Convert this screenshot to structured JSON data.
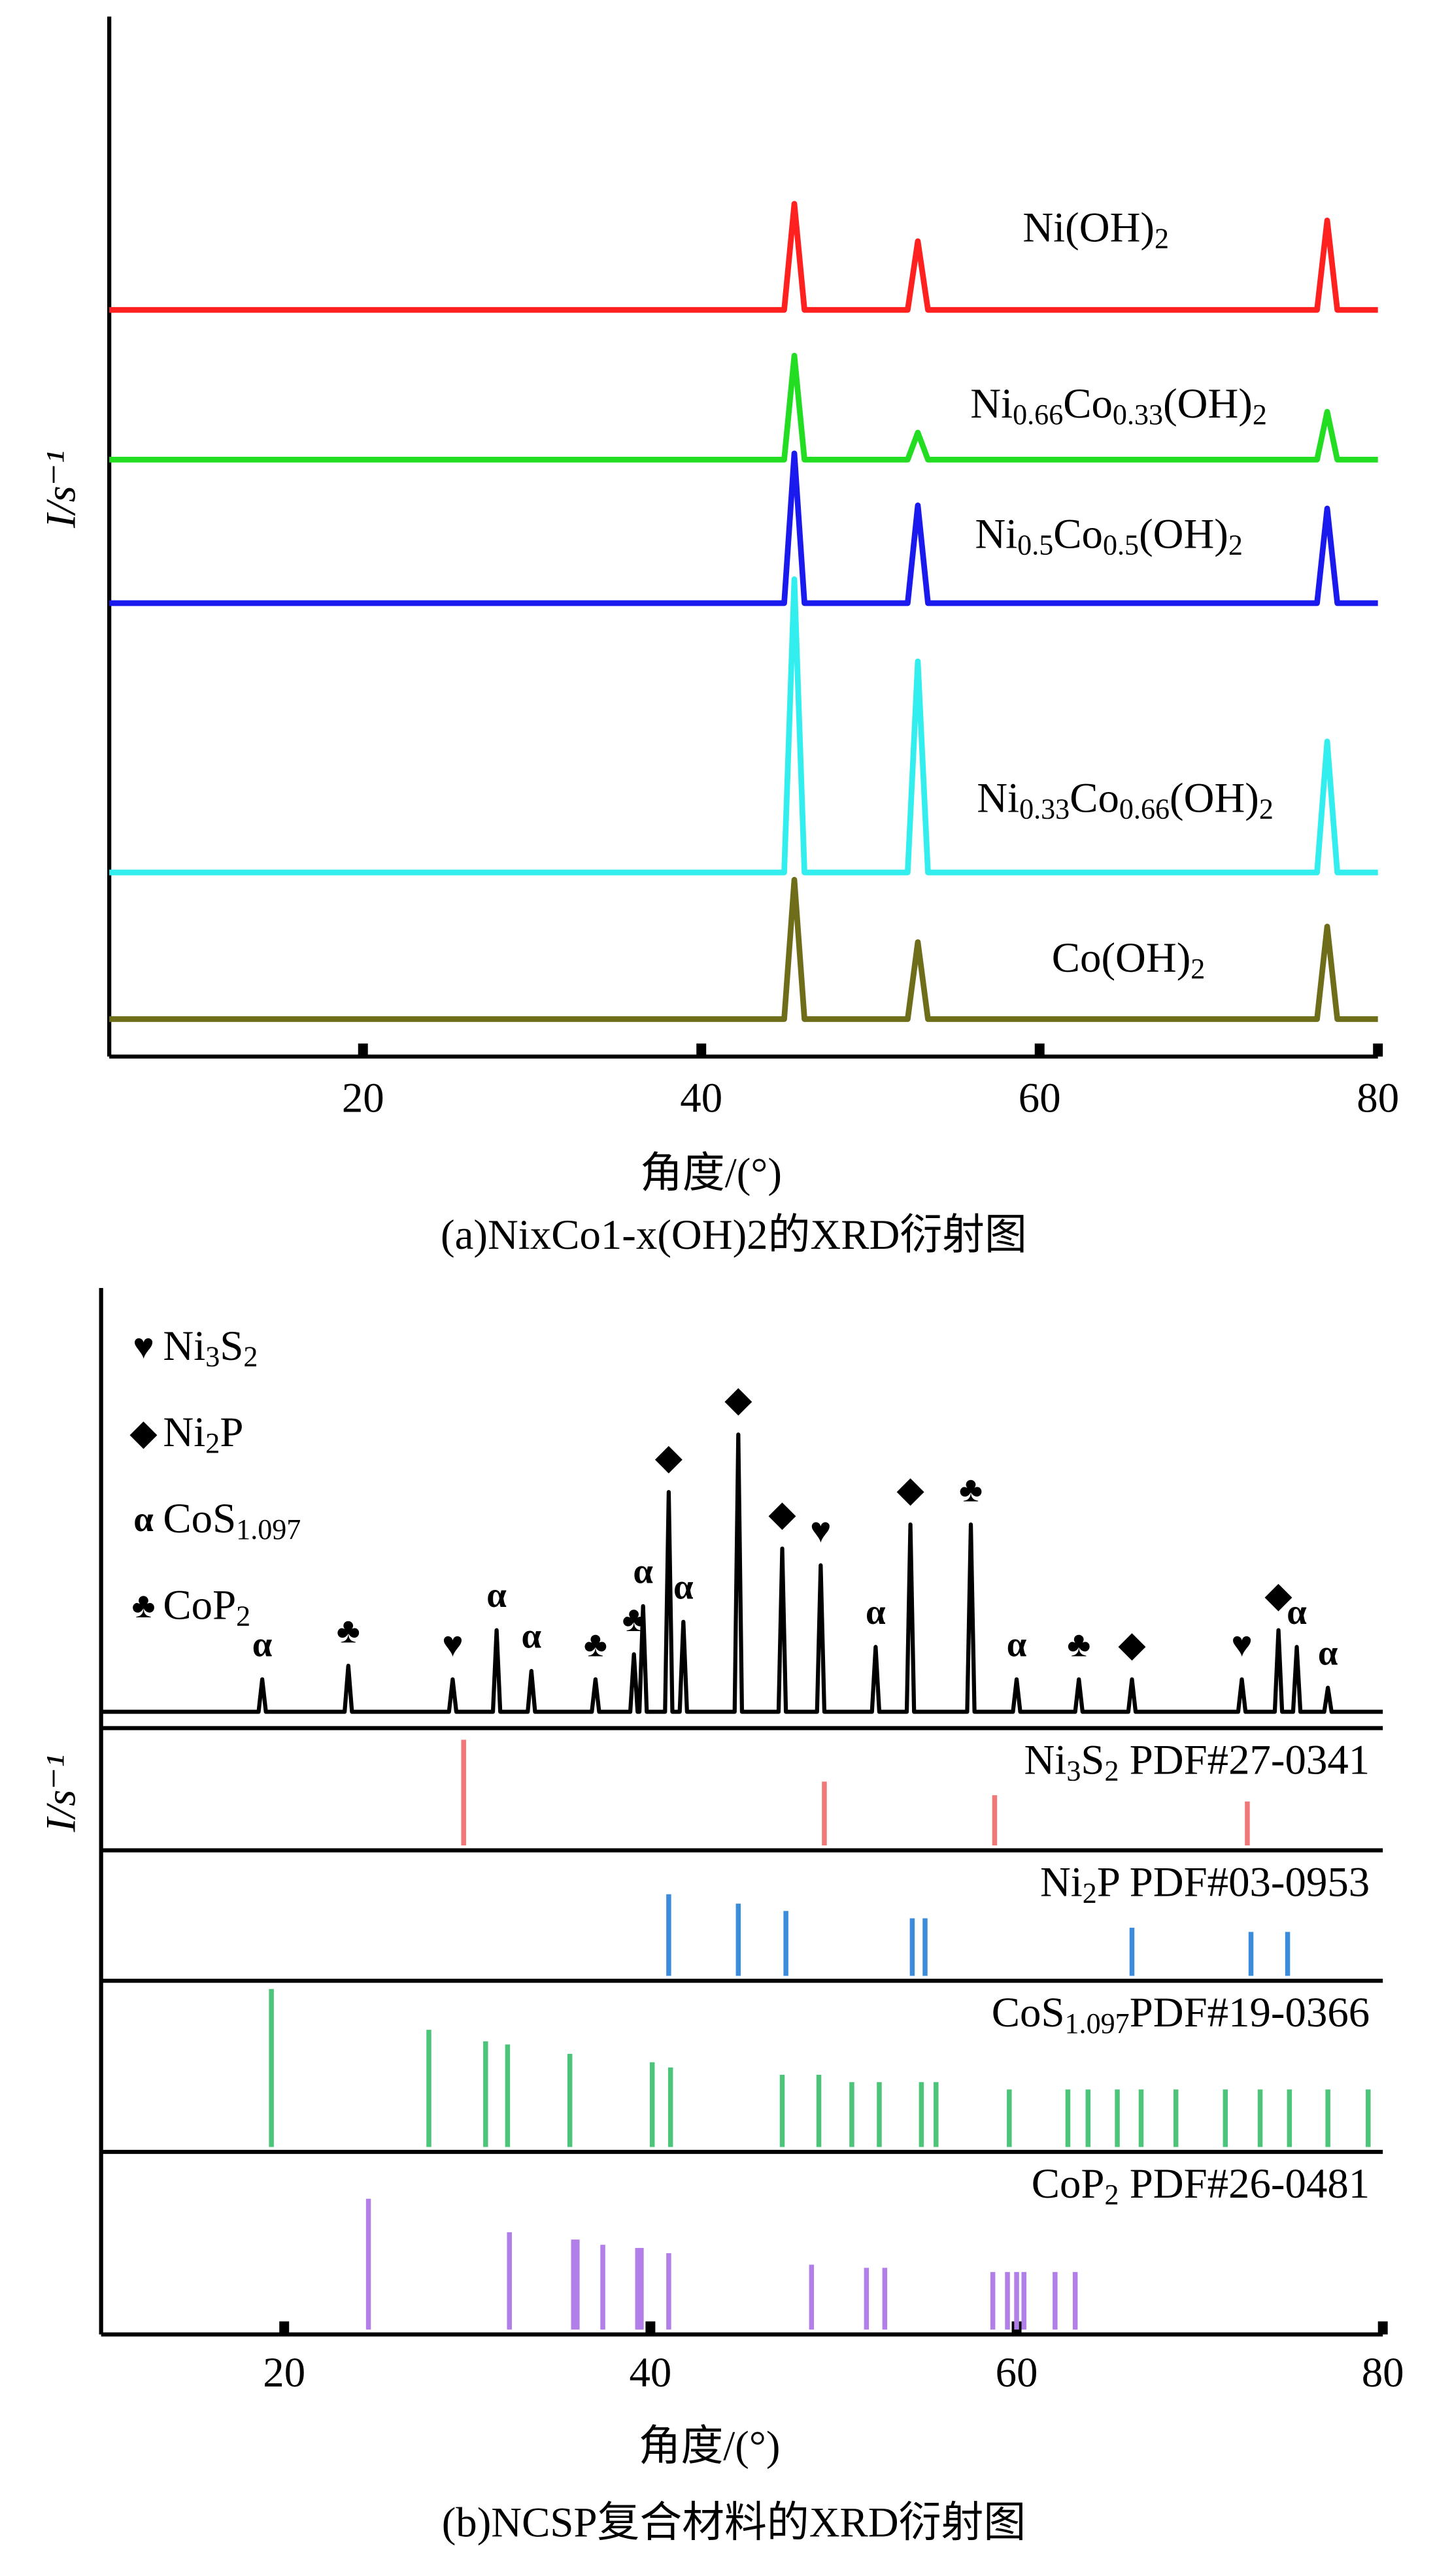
{
  "chart_data": [
    {
      "type": "line",
      "x_label": "角度/(°)",
      "y_label": "I/s⁻¹",
      "caption": "(a)NixCo1-x(OH)2的XRD衍射图",
      "xlim": [
        5,
        80
      ],
      "xticks": [
        20,
        40,
        60,
        80
      ],
      "ylim": [
        0,
        100
      ],
      "x": [
        5,
        44.9,
        45.5,
        46.1,
        52.2,
        52.8,
        53.4,
        76.4,
        77,
        77.6,
        80
      ],
      "series": [
        {
          "name": "Ni(OH)2",
          "color": "#ff2020",
          "values": [
            71.8,
            71.8,
            82,
            71.8,
            71.8,
            78.4,
            71.8,
            71.8,
            80.4,
            71.8,
            71.8
          ]
        },
        {
          "name": "Ni0.66Co0.33(OH)2",
          "color": "#22dd22",
          "values": [
            57.4,
            57.4,
            67.4,
            57.4,
            57.4,
            60,
            57.4,
            57.4,
            62,
            57.4,
            57.4
          ]
        },
        {
          "name": "Ni0.5Co0.5(OH)2",
          "color": "#1a1aee",
          "values": [
            43.6,
            43.6,
            58,
            43.6,
            43.6,
            53,
            43.6,
            43.6,
            52.7,
            43.6,
            43.6
          ]
        },
        {
          "name": "Ni0.33Co0.66(OH)2",
          "color": "#33eeee",
          "values": [
            17.7,
            17.7,
            45.9,
            17.7,
            17.7,
            38,
            17.7,
            17.7,
            30.3,
            17.7,
            17.7
          ]
        },
        {
          "name": "Co(OH)2",
          "color": "#6e6e1a",
          "values": [
            3.6,
            3.6,
            17,
            3.6,
            3.6,
            11,
            3.6,
            3.6,
            12.5,
            3.6,
            3.6
          ]
        }
      ]
    },
    {
      "type": "stick",
      "x_label": "角度/(°)",
      "y_label": "I/s⁻¹",
      "caption": "(b)NCSP复合材料的XRD衍射图",
      "xlim": [
        10,
        80
      ],
      "xticks": [
        20,
        40,
        60,
        80
      ],
      "ylim": [
        0,
        100
      ],
      "pattern": {
        "color": "#000000",
        "x": [
          10,
          18.6,
          18.8,
          19.0,
          23.3,
          23.5,
          23.7,
          29.0,
          29.2,
          29.4,
          31.4,
          31.6,
          31.8,
          33.3,
          33.5,
          33.7,
          36.8,
          37.0,
          37.2,
          38.9,
          39.1,
          39.3,
          39.4,
          39.6,
          39.8,
          40.8,
          41.0,
          41.2,
          41.6,
          41.8,
          42.0,
          44.6,
          44.8,
          45.0,
          47.0,
          47.2,
          47.4,
          49.1,
          49.3,
          49.5,
          52.1,
          52.3,
          52.5,
          54.0,
          54.2,
          54.4,
          57.3,
          57.5,
          57.7,
          59.8,
          60.0,
          60.2,
          63.2,
          63.4,
          63.6,
          66.1,
          66.3,
          66.5,
          72.1,
          72.3,
          72.5,
          74.1,
          74.3,
          74.5,
          75.1,
          75.3,
          75.5,
          76.8,
          77.0,
          77.2,
          80
        ],
        "values": [
          59.5,
          59.5,
          62.6,
          59.5,
          59.5,
          63.9,
          59.5,
          59.5,
          62.6,
          59.5,
          59.5,
          67.3,
          59.5,
          59.5,
          63.4,
          59.5,
          59.5,
          62.6,
          59.5,
          59.5,
          65.0,
          59.5,
          59.5,
          69.6,
          59.5,
          59.5,
          80.5,
          59.5,
          59.5,
          68.1,
          59.5,
          59.5,
          86.0,
          59.5,
          59.5,
          75.1,
          59.5,
          59.5,
          73.5,
          59.5,
          59.5,
          65.7,
          59.5,
          59.5,
          77.4,
          59.5,
          59.5,
          77.4,
          59.5,
          59.5,
          62.6,
          59.5,
          59.5,
          62.6,
          59.5,
          59.5,
          62.6,
          59.5,
          59.5,
          62.6,
          59.5,
          59.5,
          67.3,
          59.5,
          59.5,
          65.7,
          59.5,
          59.5,
          61.8,
          59.5,
          59.5
        ]
      },
      "markers": [
        {
          "name": "Ni3S2",
          "symbol": "♥",
          "x": [
            29.2,
            49.3,
            72.3
          ],
          "values": [
            65.6,
            76.5,
            65.6
          ]
        },
        {
          "name": "Ni2P",
          "symbol": "◆",
          "x": [
            41.0,
            44.8,
            47.2,
            54.2,
            66.3,
            74.3
          ],
          "values": [
            83.5,
            89,
            78.1,
            80.4,
            65.6,
            70.3
          ]
        },
        {
          "name": "CoS1.097",
          "symbol": "α",
          "x": [
            18.8,
            31.6,
            33.5,
            39.6,
            41.8,
            52.3,
            60.0,
            75.3,
            77.0
          ],
          "values": [
            65.6,
            70.3,
            66.4,
            72.6,
            71.1,
            68.7,
            65.6,
            68.7,
            64.8
          ]
        },
        {
          "name": "CoP2",
          "symbol": "♣",
          "x": [
            23.5,
            37.0,
            39.1,
            57.5,
            63.4
          ],
          "values": [
            66.9,
            65.6,
            68.0,
            80.4,
            65.6
          ]
        }
      ],
      "references": [
        {
          "name": "Ni3S2 PDF#27-0341",
          "color": "#f07878",
          "x": [
            29.8,
            49.5,
            58.8,
            72.6
          ],
          "values": [
            10.1,
            6.1,
            4.8,
            4.2
          ]
        },
        {
          "name": "Ni2P PDF#03-0953",
          "color": "#3c8cdc",
          "x": [
            41.0,
            44.8,
            47.4,
            54.3,
            55.0,
            66.3,
            72.8,
            74.8
          ],
          "values": [
            7.8,
            6.9,
            6.2,
            5.5,
            5.5,
            4.6,
            4.2,
            4.2
          ]
        },
        {
          "name": "CoS1.097PDF#19-0366",
          "color": "#4cc47a",
          "x": [
            19.3,
            27.9,
            31.0,
            32.2,
            35.6,
            40.1,
            41.1,
            47.2,
            49.2,
            51.0,
            52.5,
            54.8,
            55.6,
            59.6,
            62.8,
            63.9,
            65.5,
            66.8,
            68.7,
            71.4,
            73.3,
            74.9,
            77.0,
            79.2
          ],
          "values": [
            15.1,
            11.2,
            10.1,
            9.8,
            8.9,
            8.1,
            7.6,
            6.9,
            6.9,
            6.2,
            6.2,
            6.2,
            6.2,
            5.5,
            5.5,
            5.5,
            5.5,
            5.5,
            5.5,
            5.5,
            5.5,
            5.5,
            5.5,
            5.5
          ]
        },
        {
          "name": "CoP2 PDF#26-0481",
          "color": "#b27ee8",
          "x": [
            24.6,
            32.3,
            35.8,
            36.0,
            37.4,
            39.3,
            39.5,
            41.0,
            48.8,
            51.8,
            52.8,
            58.7,
            59.5,
            60.0,
            60.4,
            62.1,
            63.2
          ],
          "values": [
            12.5,
            9.3,
            8.6,
            8.6,
            8.1,
            7.8,
            7.8,
            7.3,
            6.2,
            5.9,
            5.9,
            5.5,
            5.5,
            5.5,
            5.5,
            5.5,
            5.5
          ]
        }
      ]
    }
  ]
}
